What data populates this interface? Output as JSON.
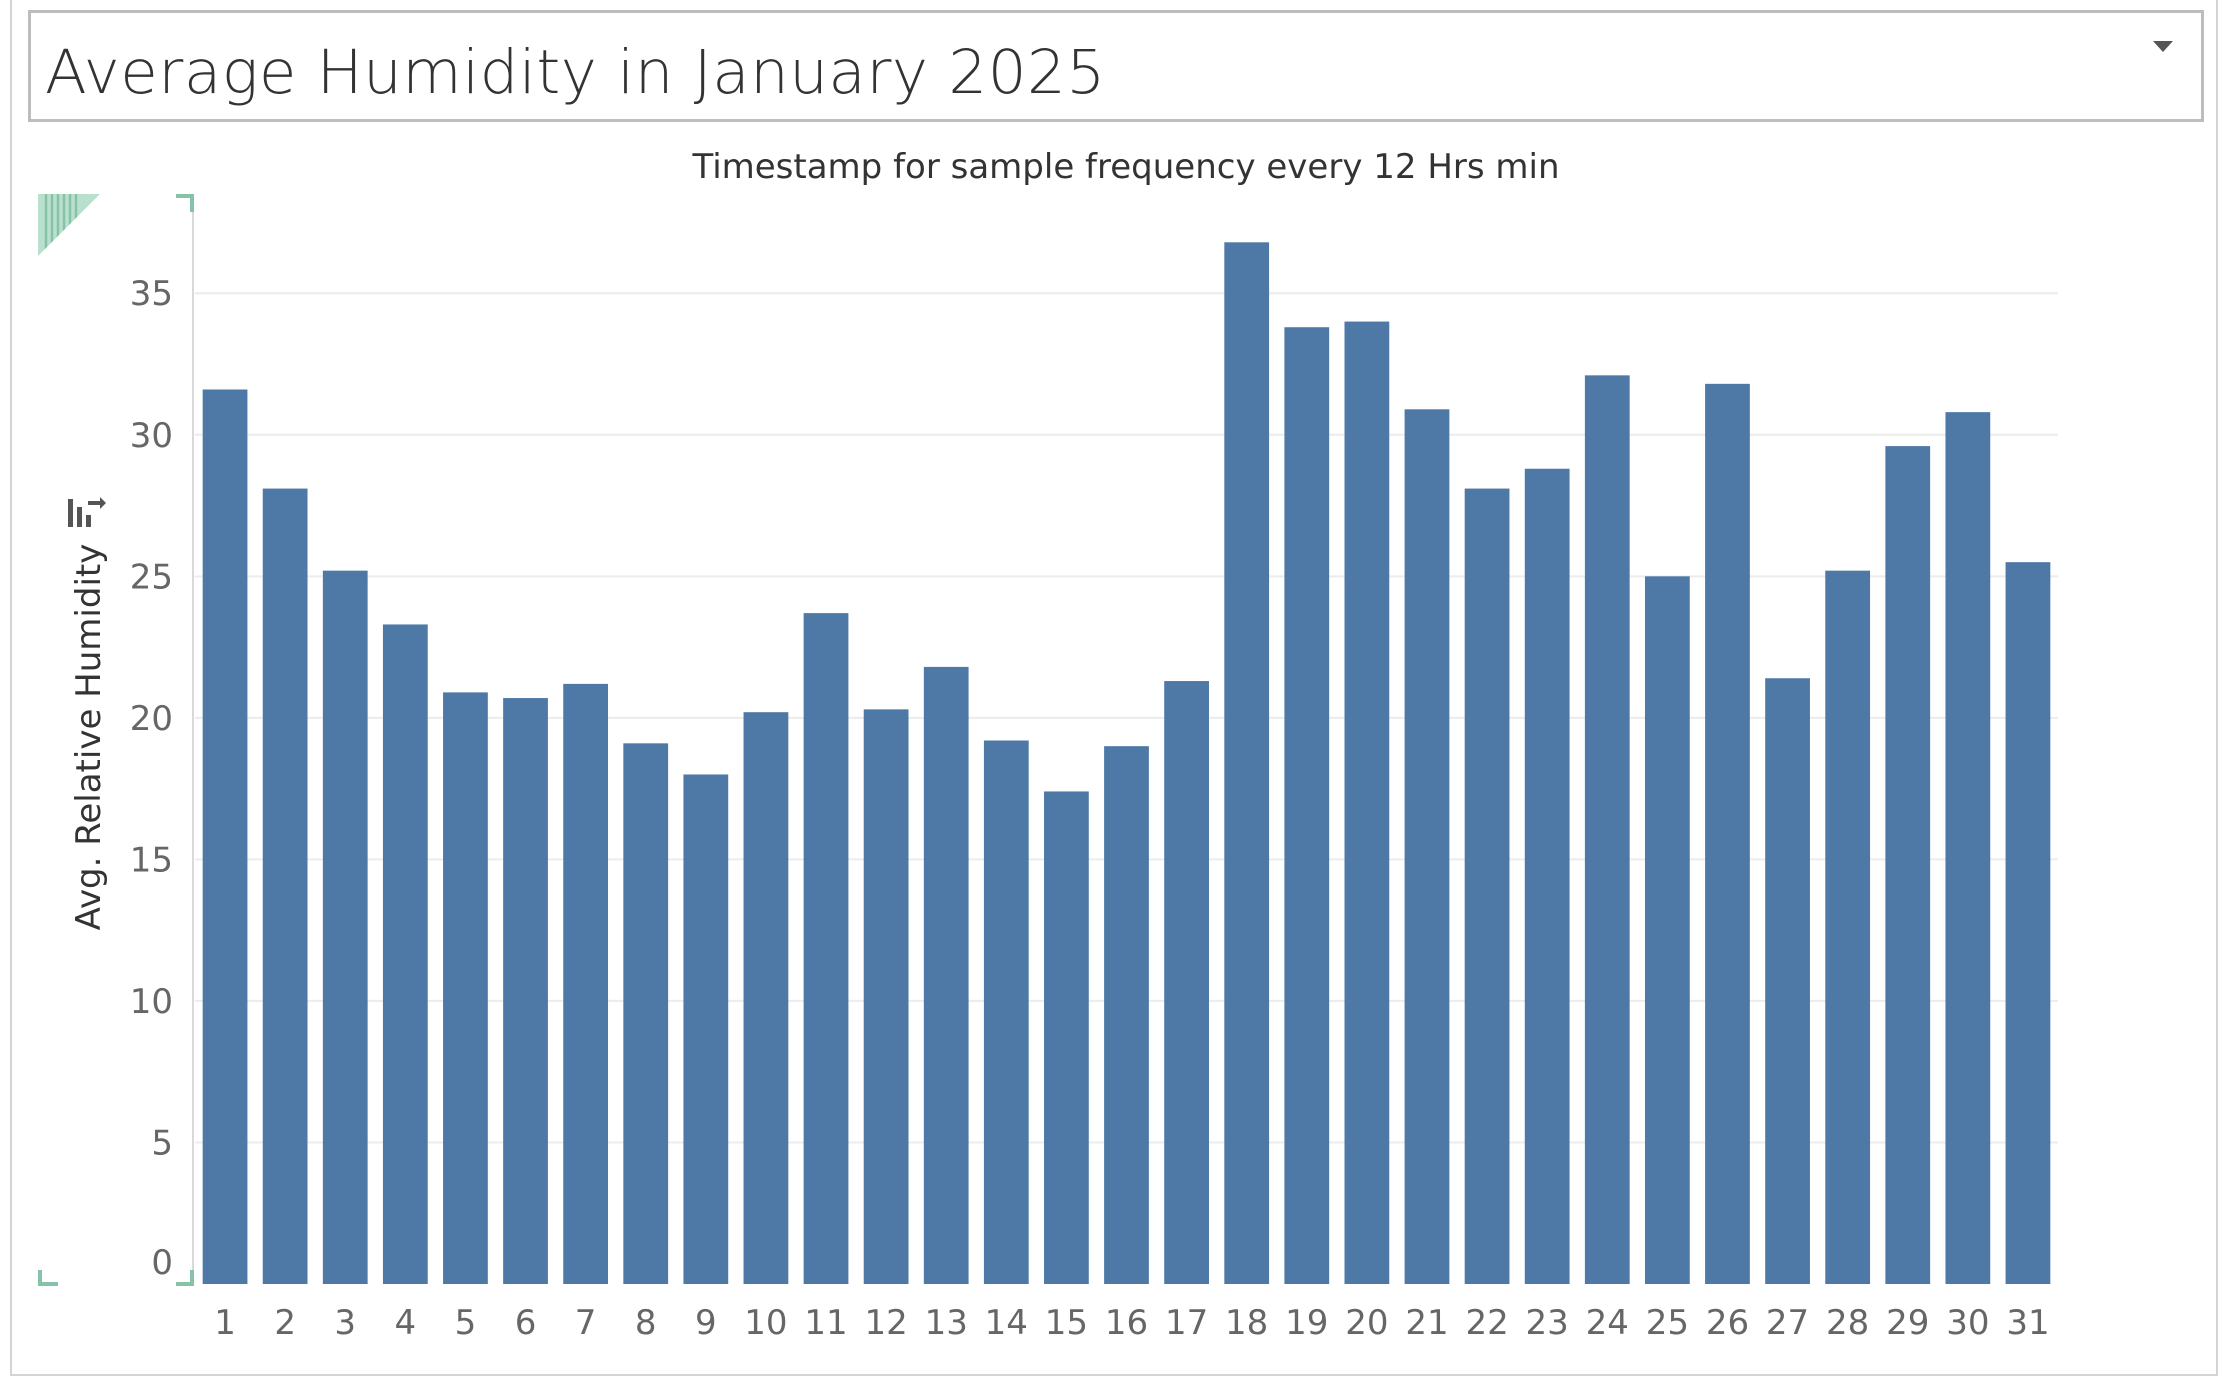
{
  "title": "Average Humidity in January 2025",
  "colors": {
    "bar": "#4e79a7",
    "grid": "#ececec",
    "tick_text": "#666666",
    "axis_title": "#333333",
    "marker": "#86c2a8"
  },
  "icons": {
    "dropdown": "dropdown-arrow-icon",
    "sort": "sort-descending-icon",
    "selection": "selection-corner-icon"
  },
  "chart_data": {
    "type": "bar",
    "title": "Timestamp for sample frequency every 12 Hrs min",
    "xlabel": "",
    "ylabel": "Avg. Relative Humidity",
    "categories": [
      "1",
      "2",
      "3",
      "4",
      "5",
      "6",
      "7",
      "8",
      "9",
      "10",
      "11",
      "12",
      "13",
      "14",
      "15",
      "16",
      "17",
      "18",
      "19",
      "20",
      "21",
      "22",
      "23",
      "24",
      "25",
      "26",
      "27",
      "28",
      "29",
      "30",
      "31"
    ],
    "values": [
      31.6,
      28.1,
      25.2,
      23.3,
      20.9,
      20.7,
      21.2,
      19.1,
      18.0,
      20.2,
      23.7,
      20.3,
      21.8,
      19.2,
      17.4,
      19.0,
      21.3,
      36.8,
      33.8,
      34.0,
      30.9,
      28.1,
      28.8,
      32.1,
      25.0,
      31.8,
      21.4,
      25.2,
      29.6,
      30.8,
      25.5
    ],
    "ylim": [
      0,
      38.4
    ],
    "yticks": [
      0,
      5,
      10,
      15,
      20,
      25,
      30,
      35
    ],
    "grid": true,
    "legend": "none"
  }
}
